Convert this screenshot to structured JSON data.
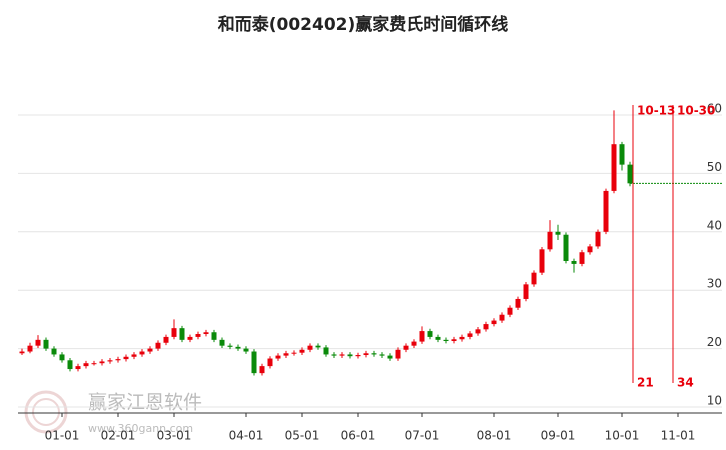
{
  "chart_data": {
    "type": "candlestick",
    "title": "和而泰(002402)赢家费氏时间循环线",
    "watermark": "赢家江恩软件",
    "watermark_url": "www.360gann.com",
    "up_color": "#e8000b",
    "down_color": "#0a8a0a",
    "grid": true,
    "ylim": [
      10,
      60
    ],
    "yticks": [
      10,
      20,
      30,
      40,
      50,
      60
    ],
    "categories": [
      null,
      null,
      null,
      null,
      null,
      "01-01",
      null,
      null,
      null,
      null,
      null,
      null,
      "02-01",
      null,
      null,
      null,
      null,
      null,
      null,
      "03-01",
      null,
      null,
      null,
      null,
      null,
      null,
      null,
      null,
      "04-01",
      null,
      null,
      null,
      null,
      null,
      null,
      "05-01",
      null,
      null,
      null,
      null,
      null,
      null,
      "06-01",
      null,
      null,
      null,
      null,
      null,
      null,
      null,
      "07-01",
      null,
      null,
      null,
      null,
      null,
      null,
      null,
      null,
      "08-01",
      null,
      null,
      null,
      null,
      null,
      null,
      null,
      "09-01",
      null,
      null,
      null,
      null,
      null,
      null,
      null,
      "10-01",
      null,
      null,
      null,
      null,
      null,
      null,
      "11-01",
      null,
      null,
      null,
      null,
      null
    ],
    "ohlc": [
      [
        19.2,
        20.0,
        18.9,
        19.5
      ],
      [
        19.5,
        21.0,
        19.2,
        20.5
      ],
      [
        20.5,
        22.3,
        20.1,
        21.5
      ],
      [
        21.5,
        21.9,
        19.6,
        20.0
      ],
      [
        20.0,
        20.4,
        18.6,
        19.0
      ],
      [
        19.0,
        19.4,
        17.6,
        18.0
      ],
      [
        18.0,
        18.4,
        16.1,
        16.5
      ],
      [
        16.5,
        17.4,
        16.1,
        17.0
      ],
      [
        17.0,
        17.9,
        16.6,
        17.5
      ],
      [
        17.5,
        17.9,
        17.1,
        17.5
      ],
      [
        17.5,
        18.2,
        17.1,
        17.8
      ],
      [
        17.8,
        18.4,
        17.4,
        18.0
      ],
      [
        18.0,
        18.6,
        17.6,
        18.2
      ],
      [
        18.2,
        19.0,
        17.8,
        18.6
      ],
      [
        18.6,
        19.4,
        18.2,
        19.0
      ],
      [
        19.0,
        19.9,
        18.6,
        19.5
      ],
      [
        19.5,
        20.4,
        19.1,
        20.0
      ],
      [
        20.0,
        21.4,
        19.6,
        21.0
      ],
      [
        21.0,
        22.4,
        20.6,
        22.0
      ],
      [
        22.0,
        25.0,
        21.6,
        23.5
      ],
      [
        23.5,
        23.9,
        21.1,
        21.5
      ],
      [
        21.5,
        22.4,
        21.1,
        22.0
      ],
      [
        22.0,
        22.9,
        21.6,
        22.5
      ],
      [
        22.5,
        23.2,
        22.1,
        22.8
      ],
      [
        22.8,
        23.2,
        21.1,
        21.5
      ],
      [
        21.5,
        21.9,
        20.1,
        20.5
      ],
      [
        20.5,
        20.9,
        19.9,
        20.3
      ],
      [
        20.3,
        20.7,
        19.6,
        20.0
      ],
      [
        20.0,
        20.4,
        19.1,
        19.5
      ],
      [
        19.5,
        19.9,
        15.4,
        15.8
      ],
      [
        15.8,
        17.4,
        15.4,
        17.0
      ],
      [
        17.0,
        18.7,
        16.6,
        18.3
      ],
      [
        18.3,
        19.2,
        17.9,
        18.8
      ],
      [
        18.8,
        19.6,
        18.4,
        19.2
      ],
      [
        19.2,
        19.7,
        18.8,
        19.3
      ],
      [
        19.3,
        20.2,
        18.9,
        19.8
      ],
      [
        19.8,
        20.9,
        19.4,
        20.5
      ],
      [
        20.5,
        20.9,
        19.8,
        20.2
      ],
      [
        20.2,
        20.6,
        18.6,
        19.0
      ],
      [
        19.0,
        19.4,
        18.4,
        18.8
      ],
      [
        18.8,
        19.4,
        18.4,
        19.0
      ],
      [
        19.0,
        19.4,
        18.3,
        18.7
      ],
      [
        18.7,
        19.3,
        18.3,
        18.9
      ],
      [
        18.9,
        19.6,
        18.5,
        19.2
      ],
      [
        19.2,
        19.6,
        18.6,
        19.0
      ],
      [
        19.0,
        19.4,
        18.4,
        18.8
      ],
      [
        18.8,
        19.2,
        17.9,
        18.3
      ],
      [
        18.3,
        20.2,
        17.9,
        19.8
      ],
      [
        19.8,
        20.9,
        19.4,
        20.5
      ],
      [
        20.5,
        21.6,
        20.1,
        21.2
      ],
      [
        21.2,
        23.8,
        20.8,
        23.0
      ],
      [
        23.0,
        23.4,
        21.6,
        22.0
      ],
      [
        22.0,
        22.4,
        21.1,
        21.5
      ],
      [
        21.5,
        21.9,
        20.9,
        21.3
      ],
      [
        21.3,
        22.0,
        20.9,
        21.6
      ],
      [
        21.6,
        22.4,
        21.2,
        22.0
      ],
      [
        22.0,
        23.0,
        21.6,
        22.6
      ],
      [
        22.6,
        23.7,
        22.2,
        23.3
      ],
      [
        23.3,
        24.6,
        22.9,
        24.2
      ],
      [
        24.2,
        25.2,
        23.8,
        24.8
      ],
      [
        24.8,
        26.2,
        24.4,
        25.8
      ],
      [
        25.8,
        27.4,
        25.4,
        27.0
      ],
      [
        27.0,
        28.9,
        26.6,
        28.5
      ],
      [
        28.5,
        31.4,
        28.1,
        31.0
      ],
      [
        31.0,
        33.4,
        30.6,
        33.0
      ],
      [
        33.0,
        37.4,
        32.6,
        37.0
      ],
      [
        37.0,
        42.0,
        36.6,
        40.0
      ],
      [
        40.0,
        41.2,
        38.6,
        39.5
      ],
      [
        39.5,
        39.9,
        34.6,
        35.0
      ],
      [
        35.0,
        35.4,
        33.0,
        34.5
      ],
      [
        34.5,
        36.9,
        34.1,
        36.5
      ],
      [
        36.5,
        37.9,
        36.1,
        37.5
      ],
      [
        37.5,
        40.4,
        37.1,
        40.0
      ],
      [
        40.0,
        47.4,
        39.6,
        47.0
      ],
      [
        47.0,
        60.8,
        46.6,
        55.0
      ],
      [
        55.0,
        55.4,
        50.5,
        51.5
      ],
      [
        51.5,
        52.0,
        47.8,
        48.3
      ],
      null,
      null,
      null,
      null,
      null,
      null,
      null,
      null,
      null,
      null,
      null
    ],
    "cycle_lines": [
      {
        "date": "10-13",
        "count": 21
      },
      {
        "date": "10-30",
        "count": 34
      }
    ]
  }
}
